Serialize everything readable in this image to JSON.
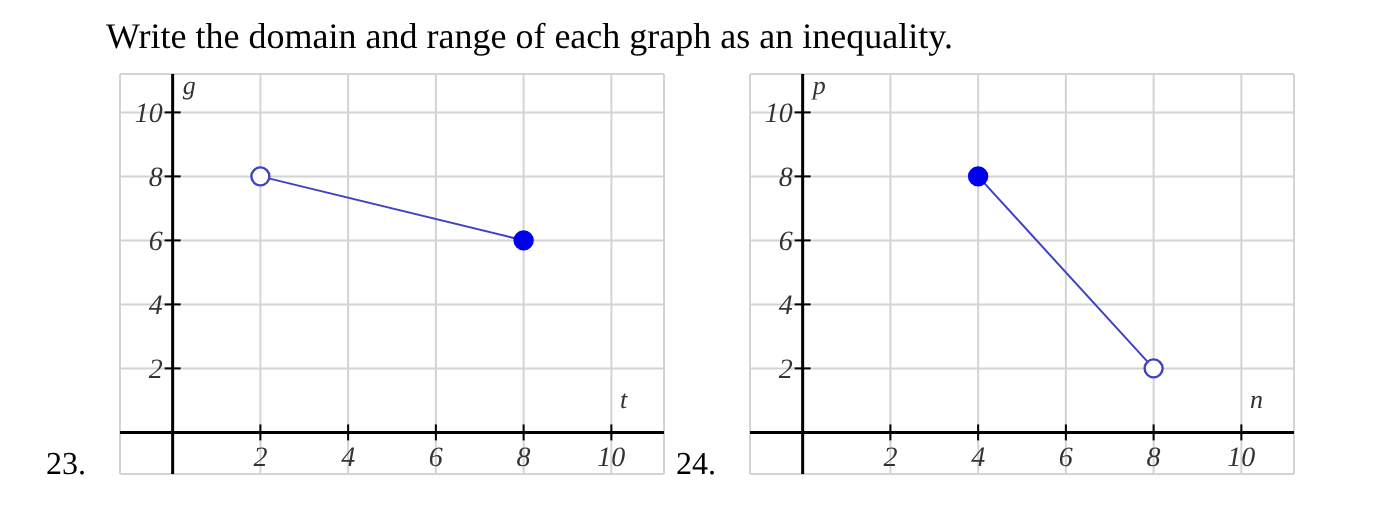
{
  "chart_data": [
    {
      "type": "line",
      "title": "Write the domain and range of each graph as an inequality.",
      "xlabel": "t",
      "ylabel": "g",
      "annotations": [
        "23."
      ],
      "xlim": [
        -1.2,
        11.2
      ],
      "ylim": [
        -1.3,
        11.2
      ],
      "xticks": [
        2,
        4,
        6,
        8,
        10
      ],
      "yticks": [
        2,
        4,
        6,
        8,
        10
      ],
      "grid": true,
      "marker": "circle",
      "series": [
        {
          "color": "#4040c8",
          "marker": "none",
          "x": [
            2,
            8
          ],
          "values": [
            8,
            6
          ]
        },
        {
          "type": "scatter",
          "color": "#0000ee",
          "x": [
            8
          ],
          "values": [
            6
          ]
        },
        {
          "type": "scatter",
          "color": "#ffffff",
          "x": [
            2
          ],
          "values": [
            8
          ]
        }
      ]
    },
    {
      "type": "line",
      "xlabel": "n",
      "ylabel": "p",
      "annotations": [
        "24."
      ],
      "xlim": [
        -1.2,
        11.2
      ],
      "ylim": [
        -1.3,
        11.2
      ],
      "xticks": [
        2,
        4,
        6,
        8,
        10
      ],
      "yticks": [
        2,
        4,
        6,
        8,
        10
      ],
      "grid": true,
      "marker": "circle",
      "series": [
        {
          "color": "#4040c8",
          "marker": "none",
          "x": [
            4,
            8
          ],
          "values": [
            8,
            2
          ]
        },
        {
          "type": "scatter",
          "color": "#0000ee",
          "x": [
            4
          ],
          "values": [
            8
          ]
        },
        {
          "type": "scatter",
          "color": "#ffffff",
          "x": [
            8
          ],
          "values": [
            2
          ]
        }
      ]
    }
  ]
}
